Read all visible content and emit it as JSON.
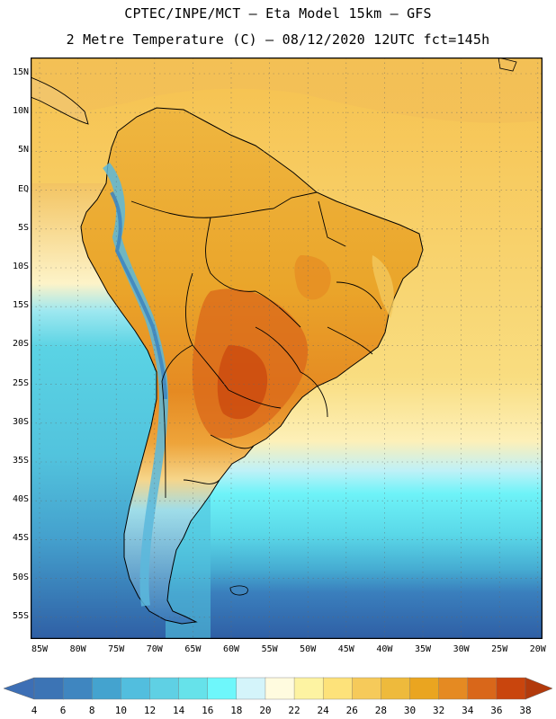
{
  "header": {
    "line1": "CPTEC/INPE/MCT –  Eta Model 15km – GFS",
    "line2": "2 Metre Temperature (C) – 08/12/2020 12UTC fct=145h"
  },
  "map": {
    "variable": "2 Metre Temperature",
    "units": "C",
    "region": "South America",
    "lat_labels": [
      "15N",
      "10N",
      "5N",
      "EQ",
      "5S",
      "10S",
      "15S",
      "20S",
      "25S",
      "30S",
      "35S",
      "40S",
      "45S",
      "50S",
      "55S"
    ],
    "lon_labels": [
      "85W",
      "80W",
      "75W",
      "70W",
      "65W",
      "60W",
      "55W",
      "50W",
      "45W",
      "40W",
      "35W",
      "30W",
      "25W",
      "20W"
    ]
  },
  "colorbar": {
    "labels": [
      "4",
      "6",
      "8",
      "10",
      "12",
      "14",
      "16",
      "18",
      "20",
      "22",
      "24",
      "26",
      "28",
      "30",
      "32",
      "34",
      "36",
      "38"
    ],
    "low_color": "#3d6fb5",
    "high_color": "#b23a0c",
    "colors": [
      "#3c74b5",
      "#3f86c0",
      "#44a3cf",
      "#52bede",
      "#5fd0e4",
      "#66e2ea",
      "#6ef7fb",
      "#d4f4fa",
      "#fffbdf",
      "#fdf3a2",
      "#fde27a",
      "#f6ca5a",
      "#eeba3c",
      "#eaa520",
      "#e58a22",
      "#d9671a",
      "#c9450d"
    ],
    "sea_cold": "#2f5fa5",
    "ocean_mid": "#52c7e0",
    "ocean_warm": "#fbe8a8"
  }
}
